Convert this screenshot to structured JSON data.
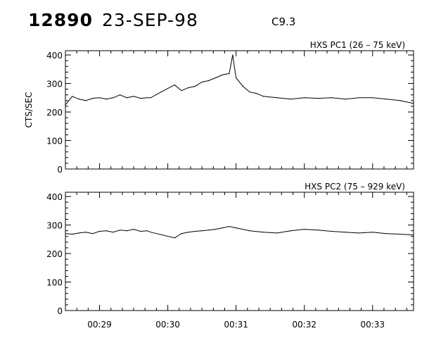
{
  "header": {
    "event_id": "12890",
    "date": "23-SEP-98",
    "flare_class": "C9.3"
  },
  "chart_data": [
    {
      "type": "line",
      "title": "HXS PC1 (26 – 75 keV)",
      "ylabel": "CTS/SEC",
      "xlabel": "",
      "ylim": [
        0,
        400
      ],
      "yticks": [
        "0",
        "100",
        "200",
        "300",
        "400"
      ],
      "x_range_minutes": [
        28.5,
        33.6
      ],
      "xticks": [
        {
          "value": 29,
          "label": "00:29"
        },
        {
          "value": 30,
          "label": "00:30"
        },
        {
          "value": 31,
          "label": "00:31"
        },
        {
          "value": 32,
          "label": "00:32"
        },
        {
          "value": 33,
          "label": "00:33"
        }
      ],
      "grid": false,
      "series": [
        {
          "x": [
            28.5,
            28.6,
            28.7,
            28.8,
            28.9,
            29.0,
            29.1,
            29.2,
            29.3,
            29.4,
            29.5,
            29.6,
            29.7,
            29.75,
            29.9,
            30.1,
            30.2,
            30.3,
            30.4,
            30.5,
            30.6,
            30.7,
            30.8,
            30.9,
            30.95,
            31.0,
            31.1,
            31.2,
            31.3,
            31.4,
            31.6,
            31.8,
            32.0,
            32.2,
            32.4,
            32.6,
            32.8,
            33.0,
            33.2,
            33.4,
            33.6
          ],
          "y": [
            225,
            255,
            245,
            240,
            248,
            250,
            245,
            250,
            260,
            250,
            255,
            248,
            250,
            250,
            270,
            295,
            275,
            285,
            290,
            305,
            310,
            320,
            330,
            335,
            400,
            320,
            290,
            270,
            265,
            255,
            250,
            245,
            250,
            248,
            250,
            245,
            250,
            250,
            245,
            240,
            230
          ]
        }
      ]
    },
    {
      "type": "line",
      "title": "HXS PC2 (75 – 929 keV)",
      "ylabel": "",
      "xlabel": "",
      "ylim": [
        0,
        400
      ],
      "yticks": [
        "0",
        "100",
        "200",
        "300",
        "400"
      ],
      "x_range_minutes": [
        28.5,
        33.6
      ],
      "xticks": [
        {
          "value": 29,
          "label": "00:29"
        },
        {
          "value": 30,
          "label": "00:30"
        },
        {
          "value": 31,
          "label": "00:31"
        },
        {
          "value": 32,
          "label": "00:32"
        },
        {
          "value": 33,
          "label": "00:33"
        }
      ],
      "grid": false,
      "series": [
        {
          "x": [
            28.5,
            28.6,
            28.7,
            28.8,
            28.9,
            29.0,
            29.1,
            29.2,
            29.3,
            29.4,
            29.5,
            29.6,
            29.7,
            29.75,
            30.1,
            30.2,
            30.3,
            30.4,
            30.5,
            30.6,
            30.7,
            30.8,
            30.9,
            31.0,
            31.2,
            31.4,
            31.6,
            31.8,
            32.0,
            32.2,
            32.4,
            32.6,
            32.8,
            33.0,
            33.2,
            33.4,
            33.6
          ],
          "y": [
            270,
            268,
            272,
            275,
            270,
            278,
            280,
            275,
            282,
            280,
            285,
            278,
            280,
            275,
            255,
            270,
            275,
            278,
            280,
            282,
            285,
            290,
            295,
            290,
            280,
            275,
            272,
            280,
            285,
            282,
            278,
            275,
            272,
            275,
            270,
            268,
            265
          ]
        }
      ]
    }
  ]
}
